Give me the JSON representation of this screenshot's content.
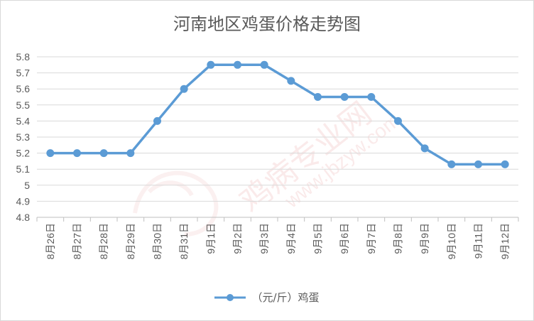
{
  "chart_data": {
    "type": "line",
    "title": "河南地区鸡蛋价格走势图",
    "categories": [
      "8月26日",
      "8月27日",
      "8月28日",
      "8月29日",
      "8月30日",
      "8月31日",
      "9月1日",
      "9月2日",
      "9月3日",
      "9月4日",
      "9月5日",
      "9月6日",
      "9月7日",
      "9月8日",
      "9月9日",
      "9月10日",
      "9月11日",
      "9月12日"
    ],
    "series": [
      {
        "name": "（元/斤）鸡蛋",
        "values": [
          5.2,
          5.2,
          5.2,
          5.2,
          5.4,
          5.6,
          5.75,
          5.75,
          5.75,
          5.65,
          5.55,
          5.55,
          5.55,
          5.4,
          5.23,
          5.13,
          5.13,
          5.13
        ]
      }
    ],
    "y_ticks": [
      "5.8",
      "5.7",
      "5.6",
      "5.5",
      "5.4",
      "5.3",
      "5.2",
      "5.1",
      "5",
      "4.9",
      "4.8"
    ],
    "ylim": [
      4.8,
      5.8
    ],
    "grid": true,
    "legend_position": "bottom",
    "line_color": "#5b9bd5",
    "grid_color": "#d9d9d9"
  }
}
